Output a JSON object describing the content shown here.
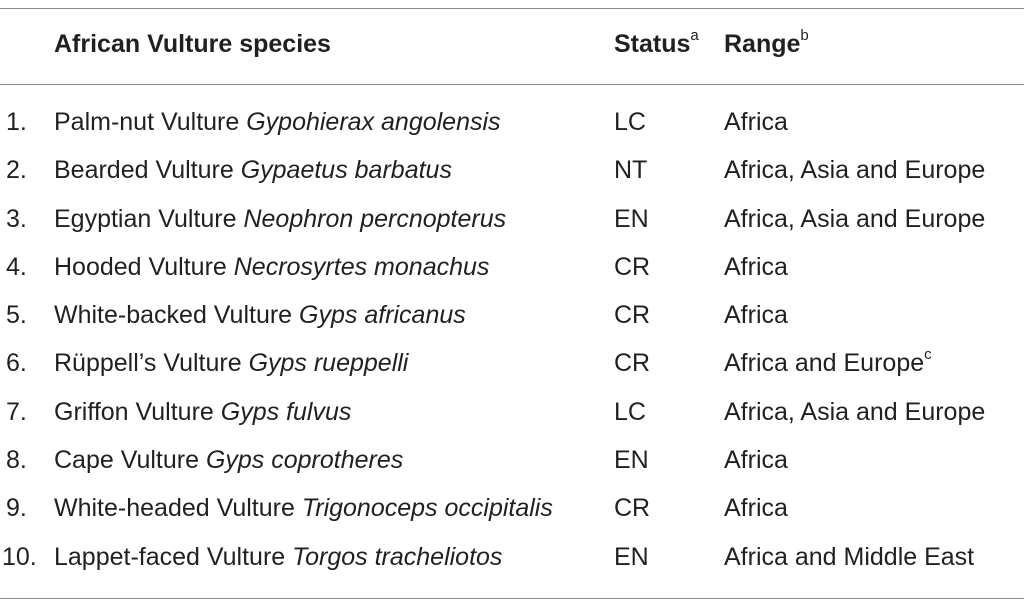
{
  "header": {
    "species": "African Vulture species",
    "status": "Status",
    "status_sup": "a",
    "range": "Range",
    "range_sup": "b"
  },
  "rows": [
    {
      "num": "1.",
      "common": "Palm-nut Vulture ",
      "scientific": "Gypohierax angolensis",
      "status": "LC",
      "range": "Africa",
      "range_sup": ""
    },
    {
      "num": "2.",
      "common": "Bearded Vulture ",
      "scientific": "Gypaetus barbatus",
      "status": "NT",
      "range": "Africa, Asia and Europe",
      "range_sup": ""
    },
    {
      "num": "3.",
      "common": "Egyptian Vulture ",
      "scientific": "Neophron percnopterus",
      "status": "EN",
      "range": "Africa, Asia and Europe",
      "range_sup": ""
    },
    {
      "num": "4.",
      "common": "Hooded Vulture ",
      "scientific": "Necrosyrtes monachus",
      "status": "CR",
      "range": "Africa",
      "range_sup": ""
    },
    {
      "num": "5.",
      "common": "White-backed Vulture ",
      "scientific": "Gyps africanus",
      "status": "CR",
      "range": "Africa",
      "range_sup": ""
    },
    {
      "num": "6.",
      "common": "Rüppell’s Vulture ",
      "scientific": "Gyps rueppelli",
      "status": "CR",
      "range": "Africa and Europe",
      "range_sup": "c"
    },
    {
      "num": "7.",
      "common": "Griffon Vulture ",
      "scientific": "Gyps fulvus",
      "status": "LC",
      "range": "Africa, Asia and Europe",
      "range_sup": ""
    },
    {
      "num": "8.",
      "common": "Cape Vulture ",
      "scientific": "Gyps coprotheres",
      "status": "EN",
      "range": "Africa",
      "range_sup": ""
    },
    {
      "num": "9.",
      "common": "White-headed Vulture ",
      "scientific": "Trigonoceps occipitalis",
      "status": "CR",
      "range": "Africa",
      "range_sup": ""
    },
    {
      "num": "10.",
      "common": "Lappet-faced Vulture ",
      "scientific": "Torgos tracheliotos",
      "status": "EN",
      "range": "Africa and Middle East",
      "range_sup": ""
    }
  ]
}
